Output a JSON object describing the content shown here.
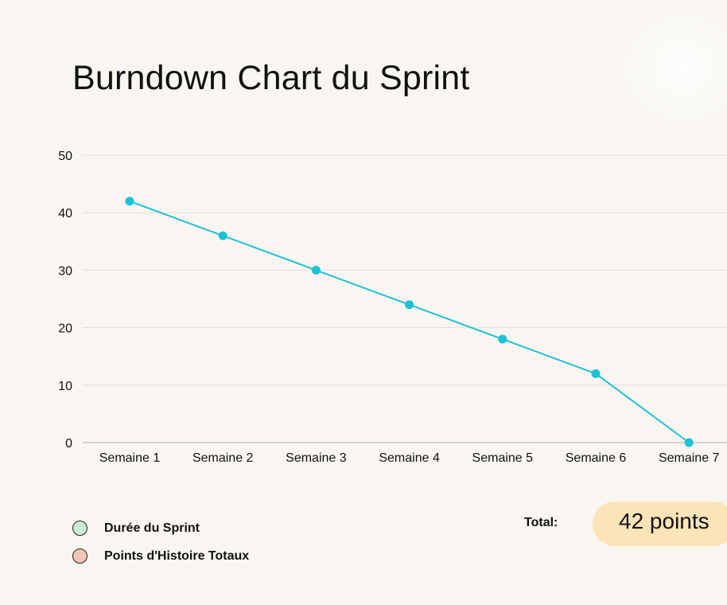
{
  "chart_data": {
    "type": "line",
    "title": "Burndown Chart du Sprint",
    "categories": [
      "Semaine 1",
      "Semaine 2",
      "Semaine 3",
      "Semaine 4",
      "Semaine 5",
      "Semaine 6",
      "Semaine 7"
    ],
    "series": [
      {
        "values": [
          42,
          36,
          30,
          24,
          18,
          12,
          0
        ]
      }
    ],
    "ylim": [
      0,
      50
    ],
    "yticks": [
      0,
      10,
      20,
      30,
      40,
      50
    ],
    "grid": true,
    "line_color": "#1ec1d6",
    "gridline_color": "#e2dfd9",
    "axis_color": "#aaaaaa"
  },
  "legend": {
    "items": [
      {
        "label": "Durée du Sprint",
        "color": "#c9ecd2"
      },
      {
        "label": "Points d'Histoire Totaux",
        "color": "#f6c3b8"
      }
    ]
  },
  "total": {
    "label": "Total:",
    "value": "42 points",
    "pill_color": "#fde4b8"
  }
}
